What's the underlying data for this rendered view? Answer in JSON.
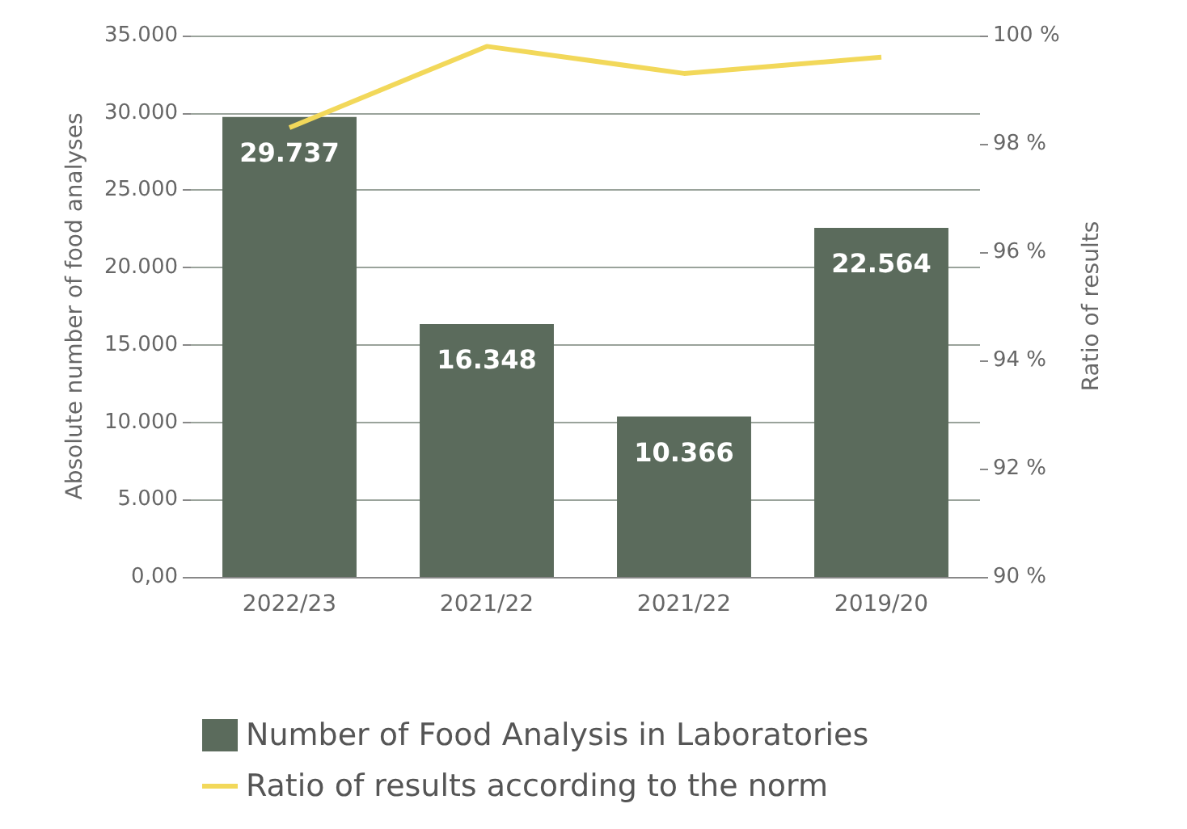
{
  "chart_data": {
    "type": "bar",
    "ylabel": "Absolute number of food analyses",
    "y2label": "Ratio of results",
    "categories": [
      "2022/23",
      "2021/22",
      "2021/22",
      "2019/20"
    ],
    "series": [
      {
        "name": "Number of Food Analysis in Laboratories",
        "color": "#5b6b5c",
        "values": [
          29737,
          16348,
          10366,
          22564
        ],
        "value_labels": [
          "29.737",
          "16.348",
          "10.366",
          "22.564"
        ]
      },
      {
        "name": "Ratio of results according to the norm",
        "type": "line",
        "axis": "y2",
        "color": "#f2d85a",
        "values": [
          98.3,
          99.8,
          99.3,
          99.6
        ]
      }
    ],
    "ylim": [
      0,
      35000
    ],
    "yticks": [
      {
        "value": 0,
        "label": "0,00"
      },
      {
        "value": 5000,
        "label": "5.000"
      },
      {
        "value": 10000,
        "label": "10.000"
      },
      {
        "value": 15000,
        "label": "15.000"
      },
      {
        "value": 20000,
        "label": "20.000"
      },
      {
        "value": 25000,
        "label": "25.000"
      },
      {
        "value": 30000,
        "label": "30.000"
      },
      {
        "value": 35000,
        "label": "35.000"
      }
    ],
    "y2lim": [
      90,
      100
    ],
    "y2ticks": [
      {
        "value": 90,
        "label": "90 %"
      },
      {
        "value": 92,
        "label": "92 %"
      },
      {
        "value": 94,
        "label": "94 %"
      },
      {
        "value": 96,
        "label": "96 %"
      },
      {
        "value": 98,
        "label": "98 %"
      },
      {
        "value": 100,
        "label": "100 %"
      }
    ],
    "grid": "y",
    "legend": "bottom",
    "marker": "none",
    "line_style": "solid"
  }
}
